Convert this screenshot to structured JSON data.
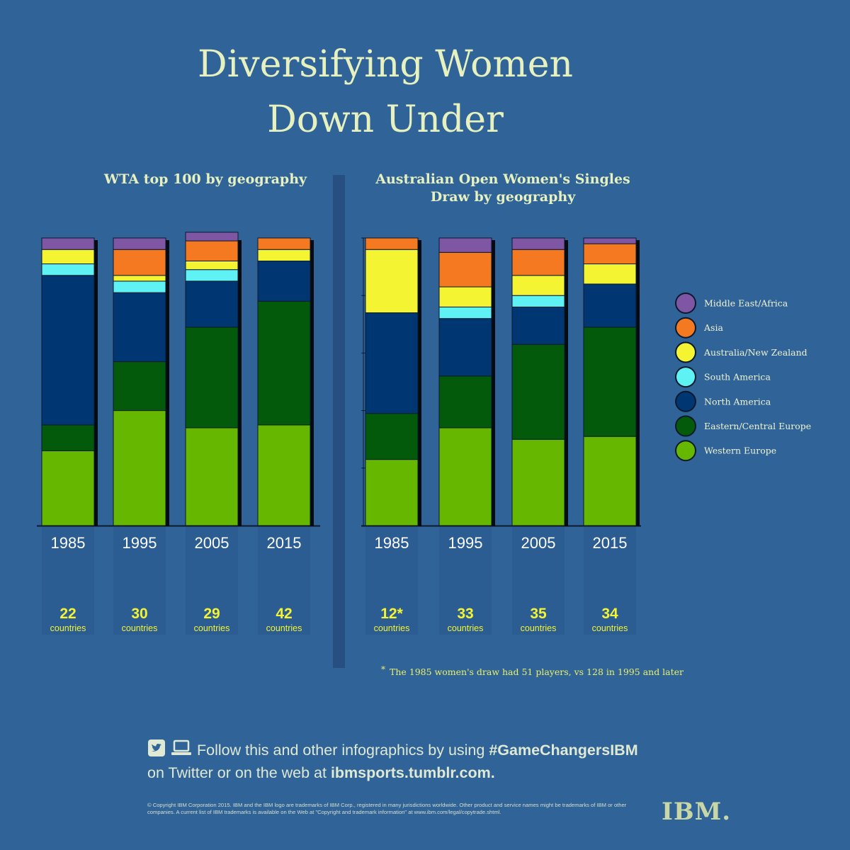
{
  "title_lines": [
    "Diversifying Women",
    "Down Under"
  ],
  "colors": {
    "Middle East/Africa": "#7e56a4",
    "Asia": "#f47920",
    "Australia/New Zealand": "#f4f433",
    "South America": "#5ef2f5",
    "North America": "#003671",
    "Eastern/Central Europe": "#035a0a",
    "Western Europe": "#66b700"
  },
  "chart_data": [
    {
      "type": "bar",
      "stacked": true,
      "title": "WTA top 100 by geography",
      "categories": [
        "1985",
        "1995",
        "2005",
        "2015"
      ],
      "country_counts": [
        "22",
        "30",
        "29",
        "42"
      ],
      "countries_label": "countries",
      "ylim": [
        0,
        100
      ],
      "series": [
        {
          "name": "Western Europe",
          "values": [
            26,
            40,
            34,
            35
          ]
        },
        {
          "name": "Eastern/Central Europe",
          "values": [
            9,
            17,
            35,
            43
          ]
        },
        {
          "name": "North America",
          "values": [
            52,
            24,
            16,
            14
          ]
        },
        {
          "name": "South America",
          "values": [
            4,
            4,
            4,
            0
          ]
        },
        {
          "name": "Australia/New Zealand",
          "values": [
            5,
            2,
            3,
            4
          ]
        },
        {
          "name": "Asia",
          "values": [
            0,
            9,
            7,
            4
          ]
        },
        {
          "name": "Middle East/Africa",
          "values": [
            4,
            4,
            3,
            0
          ]
        }
      ]
    },
    {
      "type": "bar",
      "stacked": true,
      "title": "Australian Open Women's Singles Draw by geography",
      "categories": [
        "1985",
        "1995",
        "2005",
        "2015"
      ],
      "country_counts": [
        "12*",
        "33",
        "35",
        "34"
      ],
      "countries_label": "countries",
      "ylim": [
        0,
        100
      ],
      "series": [
        {
          "name": "Western Europe",
          "values": [
            23,
            34,
            30,
            31
          ]
        },
        {
          "name": "Eastern/Central Europe",
          "values": [
            16,
            18,
            33,
            38
          ]
        },
        {
          "name": "North America",
          "values": [
            35,
            20,
            13,
            15
          ]
        },
        {
          "name": "South America",
          "values": [
            0,
            4,
            4,
            0
          ]
        },
        {
          "name": "Australia/New Zealand",
          "values": [
            22,
            7,
            7,
            7
          ]
        },
        {
          "name": "Asia",
          "values": [
            4,
            12,
            9,
            7
          ]
        },
        {
          "name": "Middle East/Africa",
          "values": [
            0,
            5,
            4,
            2
          ]
        }
      ],
      "legend": [
        "Middle East/Africa",
        "Asia",
        "Australia/New Zealand",
        "South America",
        "North America",
        "Eastern/Central Europe",
        "Western Europe"
      ]
    }
  ],
  "footnote": {
    "marker": "*",
    "text": "The 1985 women's draw had 51 players, vs 128 in 1995 and later"
  },
  "follow": {
    "line1_prefix": "Follow this and other infographics by using ",
    "hashtag": "#GameChangersIBM",
    "line2_prefix": "on Twitter or on the web at ",
    "url": "ibmsports.tumblr.com."
  },
  "copyright_text": "© Copyright IBM Corporation 2015. IBM and the IBM logo are trademarks of IBM Corp., registered in many jurisdictions worldwide. Other product and service names might be trademarks of IBM or other companies. A current list of IBM trademarks is available on the Web at \"Copyright and trademark information\" at www.ibm.com/legal/copytrade.shtml.",
  "logo_text": "IBM."
}
